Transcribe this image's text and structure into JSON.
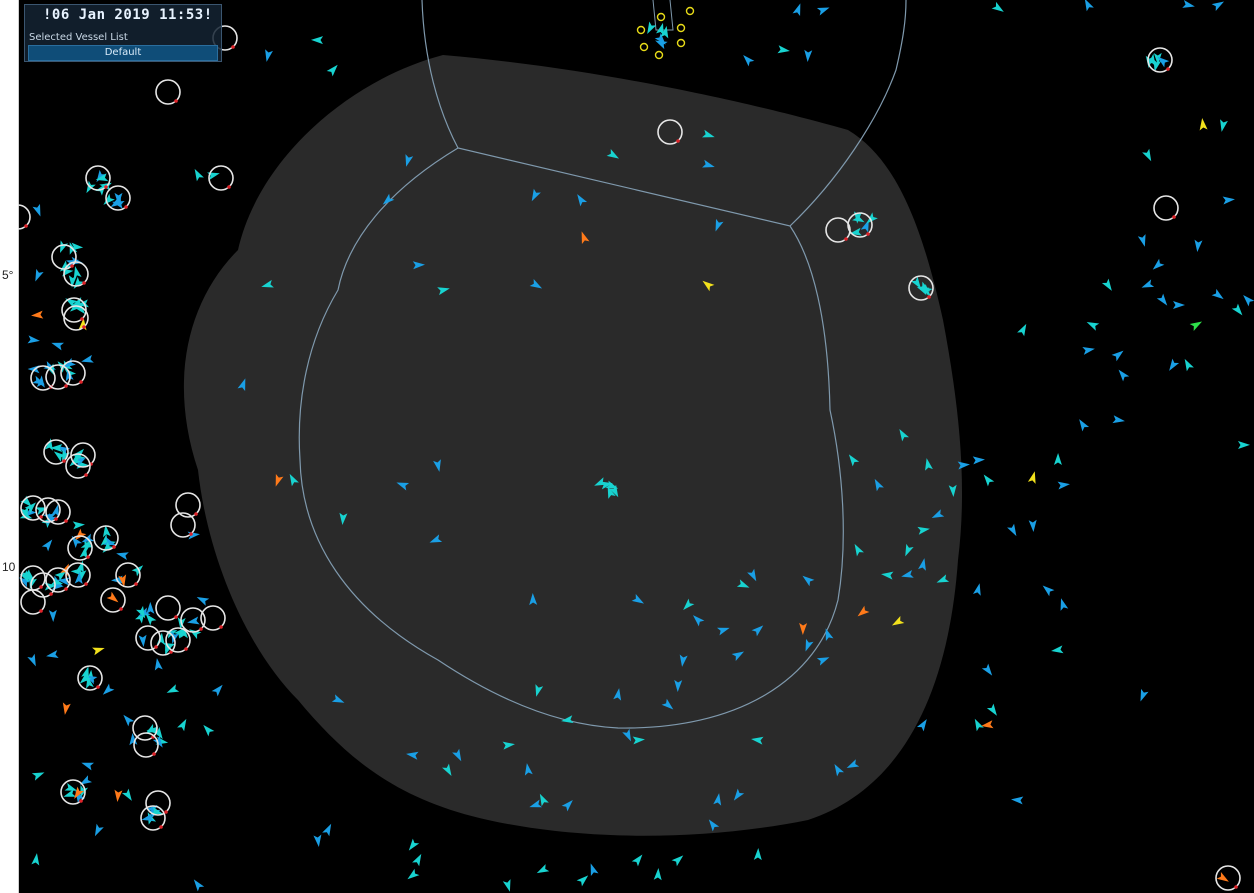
{
  "hud": {
    "datetime": "!06 Jan 2019 11:53!",
    "selected_list_label": "Selected Vessel List",
    "selected_list_value": "Default"
  },
  "ruler": {
    "lat_labels": [
      "5°",
      "10"
    ]
  },
  "colors": {
    "background": "#000000",
    "zone_fill": "#2a2a2a",
    "zone_border": "#7f99ad",
    "vessel_cyan": "#18d3d0",
    "vessel_blue": "#1a9fe5",
    "vessel_orange": "#ff7a1a",
    "vessel_yellow": "#f2e11c",
    "vessel_green": "#2ee04a",
    "tracked_ring": "#e6e6e6",
    "waypoint": "#e8dc18"
  },
  "icons": {
    "vessel": "vessel-arrow-icon",
    "tracked": "tracked-ring-icon",
    "waypoint": "waypoint-circle-icon"
  }
}
